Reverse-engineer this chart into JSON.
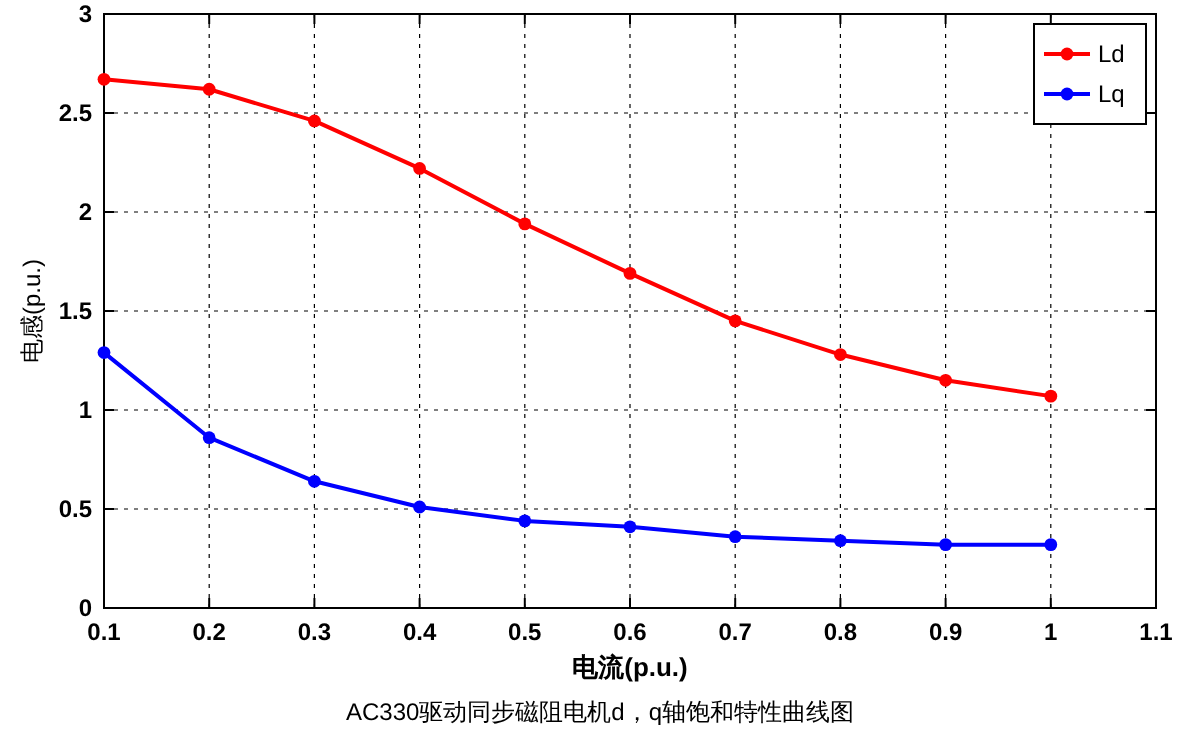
{
  "chart_data": {
    "type": "line",
    "xlabel": "电流(p.u.)",
    "ylabel": "电感(p.u.)",
    "annotations": [
      "AC330驱动同步磁阻电机d，q轴饱和特性曲线图"
    ],
    "x": [
      0.1,
      0.2,
      0.3,
      0.4,
      0.5,
      0.6,
      0.7,
      0.8,
      0.9,
      1.0
    ],
    "series": [
      {
        "name": "Ld",
        "color": "#ff0000",
        "values": [
          2.67,
          2.62,
          2.46,
          2.22,
          1.94,
          1.69,
          1.45,
          1.28,
          1.15,
          1.07
        ]
      },
      {
        "name": "Lq",
        "color": "#0000ff",
        "values": [
          1.29,
          0.86,
          0.64,
          0.51,
          0.44,
          0.41,
          0.36,
          0.34,
          0.32,
          0.32
        ]
      }
    ],
    "xlim": [
      0.1,
      1.1
    ],
    "xticks": [
      0.1,
      0.2,
      0.3,
      0.4,
      0.5,
      0.6,
      0.7,
      0.8,
      0.9,
      1,
      1.1
    ],
    "ylim": [
      0,
      3
    ],
    "yticks": [
      0,
      {
        "value": 0.5,
        "label": "0.5"
      },
      1,
      {
        "value": 1.5,
        "label": "1.5"
      },
      2,
      {
        "value": 2.5,
        "label": "2.5"
      },
      3
    ],
    "grid": true,
    "legend": "top right",
    "marker": "circle",
    "line_style": "solid"
  }
}
